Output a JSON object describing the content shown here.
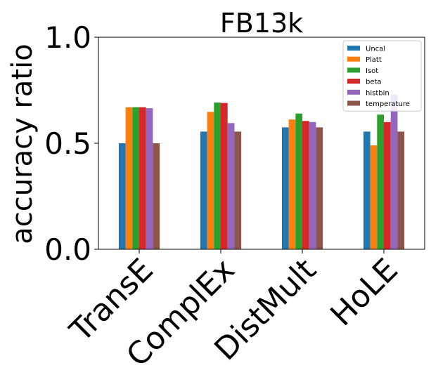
{
  "chart_data": {
    "type": "bar",
    "title": "FB13k",
    "xlabel": "",
    "ylabel": "accuracy ratio",
    "ylim": [
      0.0,
      1.0
    ],
    "yticks": [
      "0.0",
      "0.5",
      "1.0"
    ],
    "grid": false,
    "legend_position": "top-right",
    "categories": [
      "TransE",
      "ComplEx",
      "DistMult",
      "HoLE"
    ],
    "series": [
      {
        "name": "Uncal",
        "color": "#1f77b4",
        "values": [
          0.5,
          0.555,
          0.575,
          0.555
        ]
      },
      {
        "name": "Platt",
        "color": "#ff7f0e",
        "values": [
          0.67,
          0.648,
          0.612,
          0.49
        ]
      },
      {
        "name": "Isot",
        "color": "#2ca02c",
        "values": [
          0.67,
          0.692,
          0.64,
          0.635
        ]
      },
      {
        "name": "beta",
        "color": "#d62728",
        "values": [
          0.67,
          0.69,
          0.605,
          0.6
        ]
      },
      {
        "name": "histbin",
        "color": "#9467bd",
        "values": [
          0.665,
          0.595,
          0.6,
          0.73
        ]
      },
      {
        "name": "temperature",
        "color": "#8c564b",
        "values": [
          0.5,
          0.555,
          0.575,
          0.555
        ]
      }
    ]
  }
}
